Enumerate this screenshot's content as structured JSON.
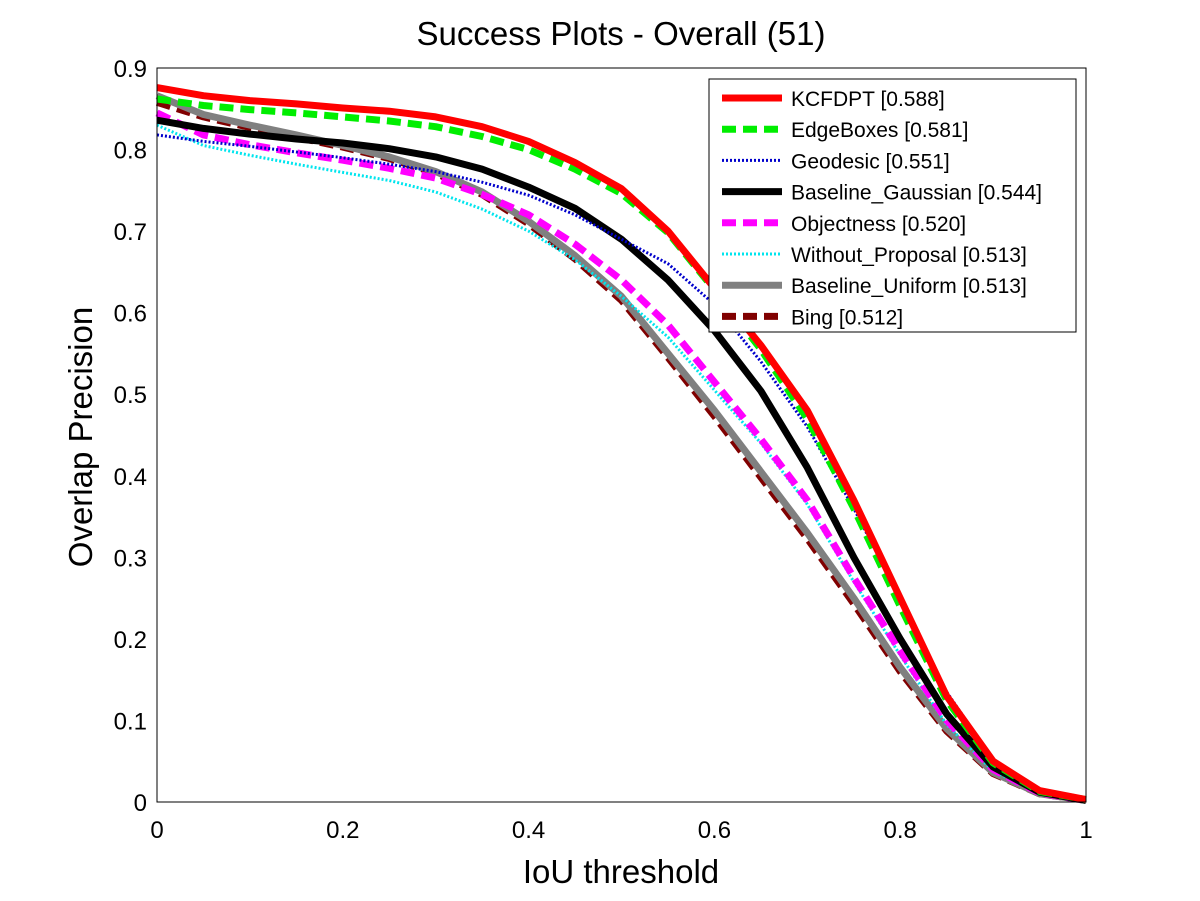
{
  "chart_data": {
    "type": "line",
    "title": "Success Plots - Overall (51)",
    "xlabel": "IoU threshold",
    "ylabel": "Overlap Precision",
    "xlim": [
      0,
      1
    ],
    "ylim": [
      0,
      0.9
    ],
    "xticks": [
      "0",
      "0.2",
      "0.4",
      "0.6",
      "0.8",
      "1"
    ],
    "yticks": [
      "0",
      "0.1",
      "0.2",
      "0.3",
      "0.4",
      "0.5",
      "0.6",
      "0.7",
      "0.8",
      "0.9"
    ],
    "grid": false,
    "legend_position": "top-right",
    "x": [
      0,
      0.05,
      0.1,
      0.15,
      0.2,
      0.25,
      0.3,
      0.35,
      0.4,
      0.45,
      0.5,
      0.55,
      0.6,
      0.65,
      0.7,
      0.75,
      0.8,
      0.85,
      0.9,
      0.95,
      1.0
    ],
    "series": [
      {
        "name": "KCFDPT [0.588]",
        "color": "#ff0000",
        "style": "solid",
        "width": 7,
        "values": [
          0.876,
          0.866,
          0.86,
          0.856,
          0.851,
          0.847,
          0.84,
          0.828,
          0.81,
          0.784,
          0.752,
          0.7,
          0.63,
          0.56,
          0.48,
          0.37,
          0.25,
          0.13,
          0.05,
          0.014,
          0.003
        ]
      },
      {
        "name": "EdgeBoxes [0.581]",
        "color": "#00ee00",
        "style": "dashed",
        "width": 7,
        "values": [
          0.862,
          0.854,
          0.849,
          0.845,
          0.84,
          0.835,
          0.828,
          0.816,
          0.8,
          0.776,
          0.746,
          0.698,
          0.628,
          0.555,
          0.47,
          0.36,
          0.24,
          0.125,
          0.048,
          0.013,
          0.003
        ]
      },
      {
        "name": "Geodesic [0.551]",
        "color": "#0000cc",
        "style": "dotted",
        "width": 3,
        "values": [
          0.818,
          0.81,
          0.804,
          0.797,
          0.79,
          0.782,
          0.773,
          0.76,
          0.744,
          0.72,
          0.69,
          0.66,
          0.61,
          0.54,
          0.46,
          0.36,
          0.25,
          0.135,
          0.052,
          0.014,
          0.003
        ]
      },
      {
        "name": "Baseline_Gaussian [0.544]",
        "color": "#000000",
        "style": "solid",
        "width": 7,
        "values": [
          0.836,
          0.826,
          0.819,
          0.813,
          0.808,
          0.801,
          0.791,
          0.776,
          0.754,
          0.728,
          0.69,
          0.64,
          0.578,
          0.504,
          0.41,
          0.3,
          0.2,
          0.108,
          0.043,
          0.012,
          0.002
        ]
      },
      {
        "name": "Objectness [0.520]",
        "color": "#ff00ff",
        "style": "dashed",
        "width": 7,
        "values": [
          0.845,
          0.818,
          0.806,
          0.796,
          0.787,
          0.777,
          0.765,
          0.745,
          0.72,
          0.684,
          0.64,
          0.585,
          0.515,
          0.445,
          0.37,
          0.275,
          0.185,
          0.1,
          0.04,
          0.011,
          0.002
        ]
      },
      {
        "name": "Without_Proposal [0.513]",
        "color": "#00e5ee",
        "style": "dotted",
        "width": 3,
        "values": [
          0.83,
          0.805,
          0.793,
          0.782,
          0.772,
          0.762,
          0.748,
          0.727,
          0.7,
          0.665,
          0.62,
          0.57,
          0.505,
          0.44,
          0.365,
          0.27,
          0.18,
          0.095,
          0.038,
          0.011,
          0.002
        ]
      },
      {
        "name": "Baseline_Uniform [0.513]",
        "color": "#808080",
        "style": "solid",
        "width": 7,
        "values": [
          0.866,
          0.843,
          0.83,
          0.818,
          0.805,
          0.791,
          0.773,
          0.748,
          0.712,
          0.67,
          0.62,
          0.55,
          0.48,
          0.405,
          0.33,
          0.25,
          0.165,
          0.09,
          0.036,
          0.01,
          0.002
        ]
      },
      {
        "name": "Bing [0.512]",
        "color": "#800000",
        "style": "dashed",
        "width": 7,
        "values": [
          0.858,
          0.84,
          0.827,
          0.815,
          0.803,
          0.789,
          0.771,
          0.745,
          0.709,
          0.666,
          0.615,
          0.545,
          0.473,
          0.398,
          0.323,
          0.243,
          0.16,
          0.087,
          0.035,
          0.01,
          0.002
        ]
      }
    ]
  }
}
